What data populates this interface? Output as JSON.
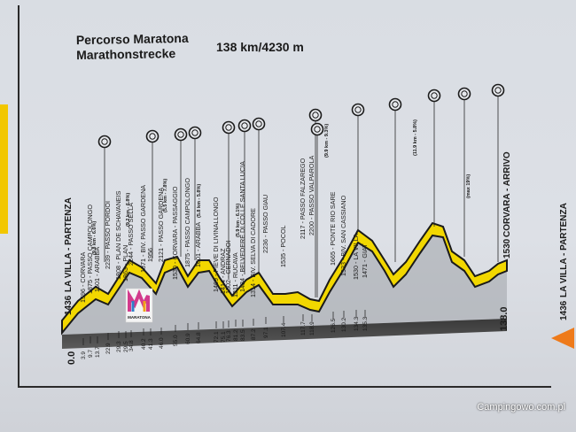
{
  "title": {
    "line1": "Percorso Maratona",
    "line2": "Marathonstrecke",
    "distance": "138 km/4230 m"
  },
  "start": {
    "elevation": "1436",
    "name": "LA VILLA - PARTENZA",
    "km": "0.0"
  },
  "finish": {
    "elevation": "1530",
    "name": "CORVARA - ARRIVO",
    "km": "138.0"
  },
  "right_edge": {
    "elevation": "1436",
    "name": "LA VILLA - PARTENZA"
  },
  "waypoints": [
    {
      "label": "1596 - CORVARA",
      "km": "3.9"
    },
    {
      "label": "1875 - PASSO CAMPOLONGO",
      "km": "9.7"
    },
    {
      "label": "1601 - ARABBA",
      "km": "13.7"
    },
    {
      "label": "2239 - PASSO PORDOI",
      "km": "22.9"
    },
    {
      "label": "1808 - PLAN DE SCHAVANEIS",
      "km": "29.3"
    },
    {
      "label": "1863 - PLAN",
      "km": "29.5"
    },
    {
      "label": "2244 - PASSO SELLA",
      "km": "34.8"
    },
    {
      "label": "1871 - BIV. PASSO GARDENA",
      "km": "40.2"
    },
    {
      "label": "1956",
      "km": "41.3"
    },
    {
      "label": "2121 - PASSO GARDENA",
      "km": "46.0"
    },
    {
      "label": "1530 - CORVARA - PASSAGGIO",
      "km": "55.0"
    },
    {
      "label": "1875 - PASSO CAMPOLONGO",
      "km": "60.9"
    },
    {
      "label": "1601 - ARABBA",
      "km": "64.8"
    },
    {
      "label": "1469 - PIEVE DI LIVINALLONGO",
      "km": "72.1"
    },
    {
      "label": "1414 - ANDRAZ",
      "km": "75.1"
    },
    {
      "label": "1502 - CERNADOI",
      "km": "76.3"
    },
    {
      "label": "1311 - RUCAVA",
      "km": "81.2"
    },
    {
      "label": "1484 - BELVEDERE DI COLLE SANTA LUCIA",
      "km": "83.5"
    },
    {
      "label": "1314 - BIV. SELVA DI CADORE",
      "km": "87.2"
    },
    {
      "label": "2236 - PASSO GIAU",
      "km": "97.1"
    },
    {
      "label": "1535 - POCOL",
      "km": "107.4"
    },
    {
      "label": "2117 - PASSO FALZAREGO",
      "km": "117.7"
    },
    {
      "label": "2200 - PASSO VALPAROLA",
      "km": "118.9"
    },
    {
      "label": "1665 - PONTE RIO SARE",
      "km": "126.5"
    },
    {
      "label": "1533 - BIV. SAN CASSIANO",
      "km": "130.2"
    },
    {
      "label": "1530 - LA VILLA",
      "km": "134.3"
    },
    {
      "label": "1471 - GIAT",
      "km": "135.3"
    }
  ],
  "grade_notes": [
    "(9.8 km - 6.6%)",
    "(9.2 km - 6.8%)",
    "(5.5 km - 7.8%)",
    "(5.8 km - 5.8%)",
    "(5.9 km - 6.1%)",
    "(9.9 km - 9.3%)",
    "(11.9 km - 5.8%)",
    "(max 19%)"
  ],
  "logo": {
    "text": "MARATONA"
  },
  "watermark": "Campingowo.com.pl",
  "colors": {
    "profile_fill": "#f2d700",
    "profile_edge": "#1a1a1a",
    "ground": "#2e2e2e",
    "board": "#dadde3"
  }
}
